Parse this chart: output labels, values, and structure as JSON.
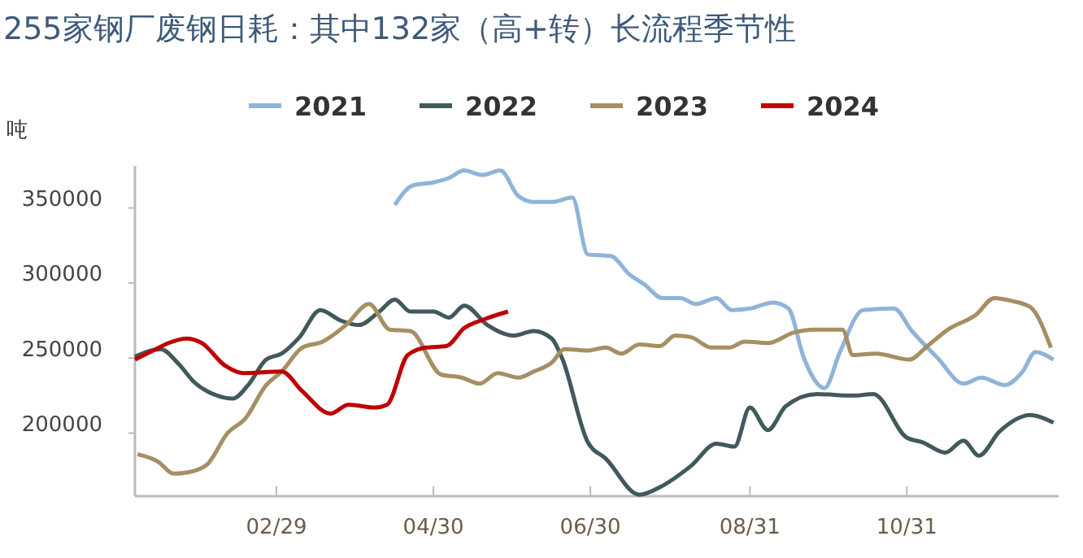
{
  "chart_data": {
    "type": "line",
    "title": "255家钢厂废钢日耗：其中132家（高+转）长流程季节性",
    "ylabel": "吨",
    "legend": "top",
    "grid": false,
    "marker": "none",
    "line_style": "solid",
    "xlim": [
      "--01-05",
      "--12-29"
    ],
    "xticks": [
      {
        "value": "--02-29",
        "label": "02/29"
      },
      {
        "value": "--04-30",
        "label": "04/30"
      },
      {
        "value": "--06-30",
        "label": "06/30"
      },
      {
        "value": "--08-31",
        "label": "08/31"
      },
      {
        "value": "--10-31",
        "label": "10/31"
      }
    ],
    "ylim": [
      158000,
      378000
    ],
    "yticks": [
      200000,
      250000,
      300000,
      350000
    ],
    "series": [
      {
        "name": "2021",
        "color": "#8fb4da",
        "x": [
          "--04-15",
          "--04-22",
          "--04-30",
          "--05-06",
          "--05-12",
          "--05-19",
          "--05-26",
          "--06-02",
          "--06-08",
          "--06-15",
          "--06-23",
          "--06-29",
          "--07-08",
          "--07-15",
          "--07-21",
          "--07-28",
          "--08-04",
          "--08-10",
          "--08-18",
          "--08-24",
          "--08-31",
          "--09-09",
          "--09-15",
          "--09-21",
          "--09-29",
          "--10-05",
          "--10-14",
          "--10-26",
          "--11-02",
          "--11-12",
          "--11-22",
          "--11-29",
          "--12-08",
          "--12-15",
          "--12-20",
          "--12-27"
        ],
        "values": [
          352000,
          365000,
          367000,
          370000,
          375000,
          372000,
          375000,
          358000,
          354000,
          354000,
          357000,
          319000,
          318000,
          306000,
          299000,
          290000,
          290000,
          286000,
          290000,
          282000,
          283000,
          287000,
          283000,
          250000,
          230000,
          254000,
          282000,
          283000,
          268000,
          250000,
          233000,
          237000,
          232000,
          241000,
          254000,
          249000
        ]
      },
      {
        "name": "2022",
        "color": "#41595c",
        "x": [
          "--01-05",
          "--01-15",
          "--01-22",
          "--01-28",
          "--02-06",
          "--02-12",
          "--02-18",
          "--02-25",
          "--03-02",
          "--03-09",
          "--03-17",
          "--03-25",
          "--04-01",
          "--04-09",
          "--04-15",
          "--04-21",
          "--04-30",
          "--05-06",
          "--05-12",
          "--05-21",
          "--05-31",
          "--06-08",
          "--06-15",
          "--06-19",
          "--06-29",
          "--07-06",
          "--07-19",
          "--07-27",
          "--08-08",
          "--08-18",
          "--08-25",
          "--08-31",
          "--09-07",
          "--09-14",
          "--09-26",
          "--10-10",
          "--10-18",
          "--10-31",
          "--11-06",
          "--11-15",
          "--11-22",
          "--11-28",
          "--12-06",
          "--12-18",
          "--12-27"
        ],
        "values": [
          251000,
          256000,
          246000,
          234000,
          225000,
          223000,
          232000,
          249000,
          253000,
          264000,
          282000,
          275000,
          272000,
          281000,
          289000,
          281000,
          281000,
          277000,
          285000,
          272000,
          265000,
          268000,
          263000,
          250000,
          194000,
          183000,
          159000,
          164000,
          178000,
          193000,
          191000,
          217000,
          202000,
          218000,
          226000,
          225000,
          226000,
          197000,
          194000,
          187000,
          195000,
          185000,
          201000,
          212000,
          207000
        ]
      },
      {
        "name": "2023",
        "color": "#a68f62",
        "x": [
          "--01-06",
          "--01-14",
          "--01-20",
          "--01-26",
          "--02-02",
          "--02-10",
          "--02-17",
          "--02-25",
          "--03-02",
          "--03-10",
          "--03-18",
          "--03-27",
          "--04-05",
          "--04-13",
          "--04-21",
          "--05-03",
          "--05-11",
          "--05-18",
          "--05-25",
          "--06-02",
          "--06-08",
          "--06-15",
          "--06-20",
          "--06-29",
          "--07-06",
          "--07-12",
          "--07-19",
          "--07-27",
          "--08-02",
          "--08-08",
          "--08-16",
          "--08-23",
          "--08-29",
          "--09-07",
          "--09-17",
          "--09-25",
          "--10-06",
          "--10-10",
          "--10-19",
          "--11-01",
          "--11-08",
          "--11-16",
          "--11-27",
          "--12-04",
          "--12-11",
          "--12-18",
          "--12-26"
        ],
        "values": [
          186000,
          181000,
          173000,
          174000,
          179000,
          200000,
          210000,
          232000,
          241000,
          257000,
          261000,
          272000,
          286000,
          269000,
          268000,
          239000,
          237000,
          233000,
          240000,
          237000,
          241000,
          247000,
          256000,
          255000,
          257000,
          253000,
          259000,
          258000,
          265000,
          264000,
          257000,
          257000,
          261000,
          260000,
          267000,
          269000,
          269000,
          252000,
          253000,
          249000,
          258000,
          269000,
          279000,
          290000,
          288000,
          284000,
          257000
        ]
      },
      {
        "name": "2024",
        "color": "#c00000",
        "x": [
          "--01-05",
          "--01-12",
          "--01-18",
          "--01-25",
          "--01-31",
          "--02-09",
          "--02-16",
          "--03-02",
          "--03-10",
          "--03-21",
          "--03-28",
          "--04-07",
          "--04-12",
          "--04-20",
          "--04-27",
          "--05-05",
          "--05-12",
          "--05-20",
          "--05-29"
        ],
        "values": [
          249000,
          255000,
          260000,
          263000,
          260000,
          245000,
          240000,
          241000,
          228000,
          213000,
          219000,
          217000,
          219000,
          252000,
          257000,
          258000,
          270000,
          276000,
          281000
        ]
      }
    ]
  }
}
